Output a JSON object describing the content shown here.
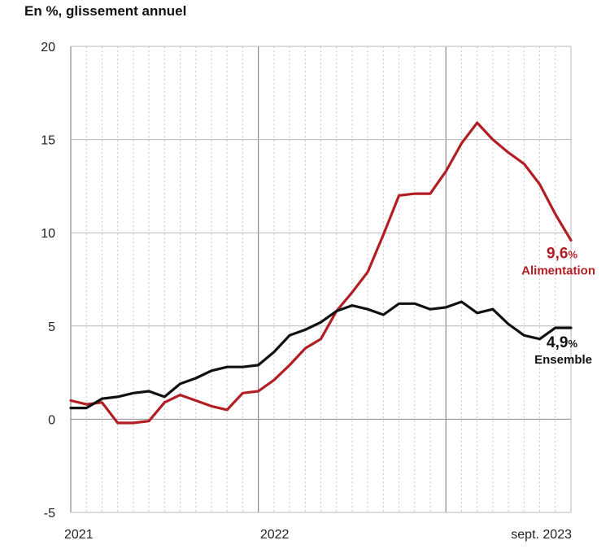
{
  "chart_data": {
    "type": "line",
    "title": "En %, glissement annuel",
    "ylim": [
      -5,
      20
    ],
    "yticks": [
      20,
      15,
      10,
      5,
      0,
      -5
    ],
    "x_start": "2021-01",
    "x_end": "2023-09",
    "x_tick_labels": [
      "2021",
      "2022",
      "sept. 2023"
    ],
    "grid": "vertical monthly dotted lines, solid lines at years, horizontal lines at y ticks",
    "series": [
      {
        "name": "Alimentation",
        "color": "#b11f24",
        "end_value": "9,6",
        "end_unit": "%",
        "values": [
          1.0,
          0.8,
          0.9,
          -0.2,
          -0.2,
          -0.1,
          0.9,
          1.3,
          1.0,
          0.7,
          0.5,
          1.4,
          1.5,
          2.1,
          2.9,
          3.8,
          4.3,
          5.8,
          6.8,
          7.9,
          9.9,
          12.0,
          12.1,
          12.1,
          13.3,
          14.8,
          15.9,
          15.0,
          14.3,
          13.7,
          12.6,
          11.0,
          9.6
        ]
      },
      {
        "name": "Ensemble",
        "color": "#111111",
        "end_value": "4,9",
        "end_unit": "%",
        "values": [
          0.6,
          0.6,
          1.1,
          1.2,
          1.4,
          1.5,
          1.2,
          1.9,
          2.2,
          2.6,
          2.8,
          2.8,
          2.9,
          3.6,
          4.5,
          4.8,
          5.2,
          5.8,
          6.1,
          5.9,
          5.6,
          6.2,
          6.2,
          5.9,
          6.0,
          6.3,
          5.7,
          5.9,
          5.1,
          4.5,
          4.3,
          4.9,
          4.9
        ]
      }
    ]
  }
}
